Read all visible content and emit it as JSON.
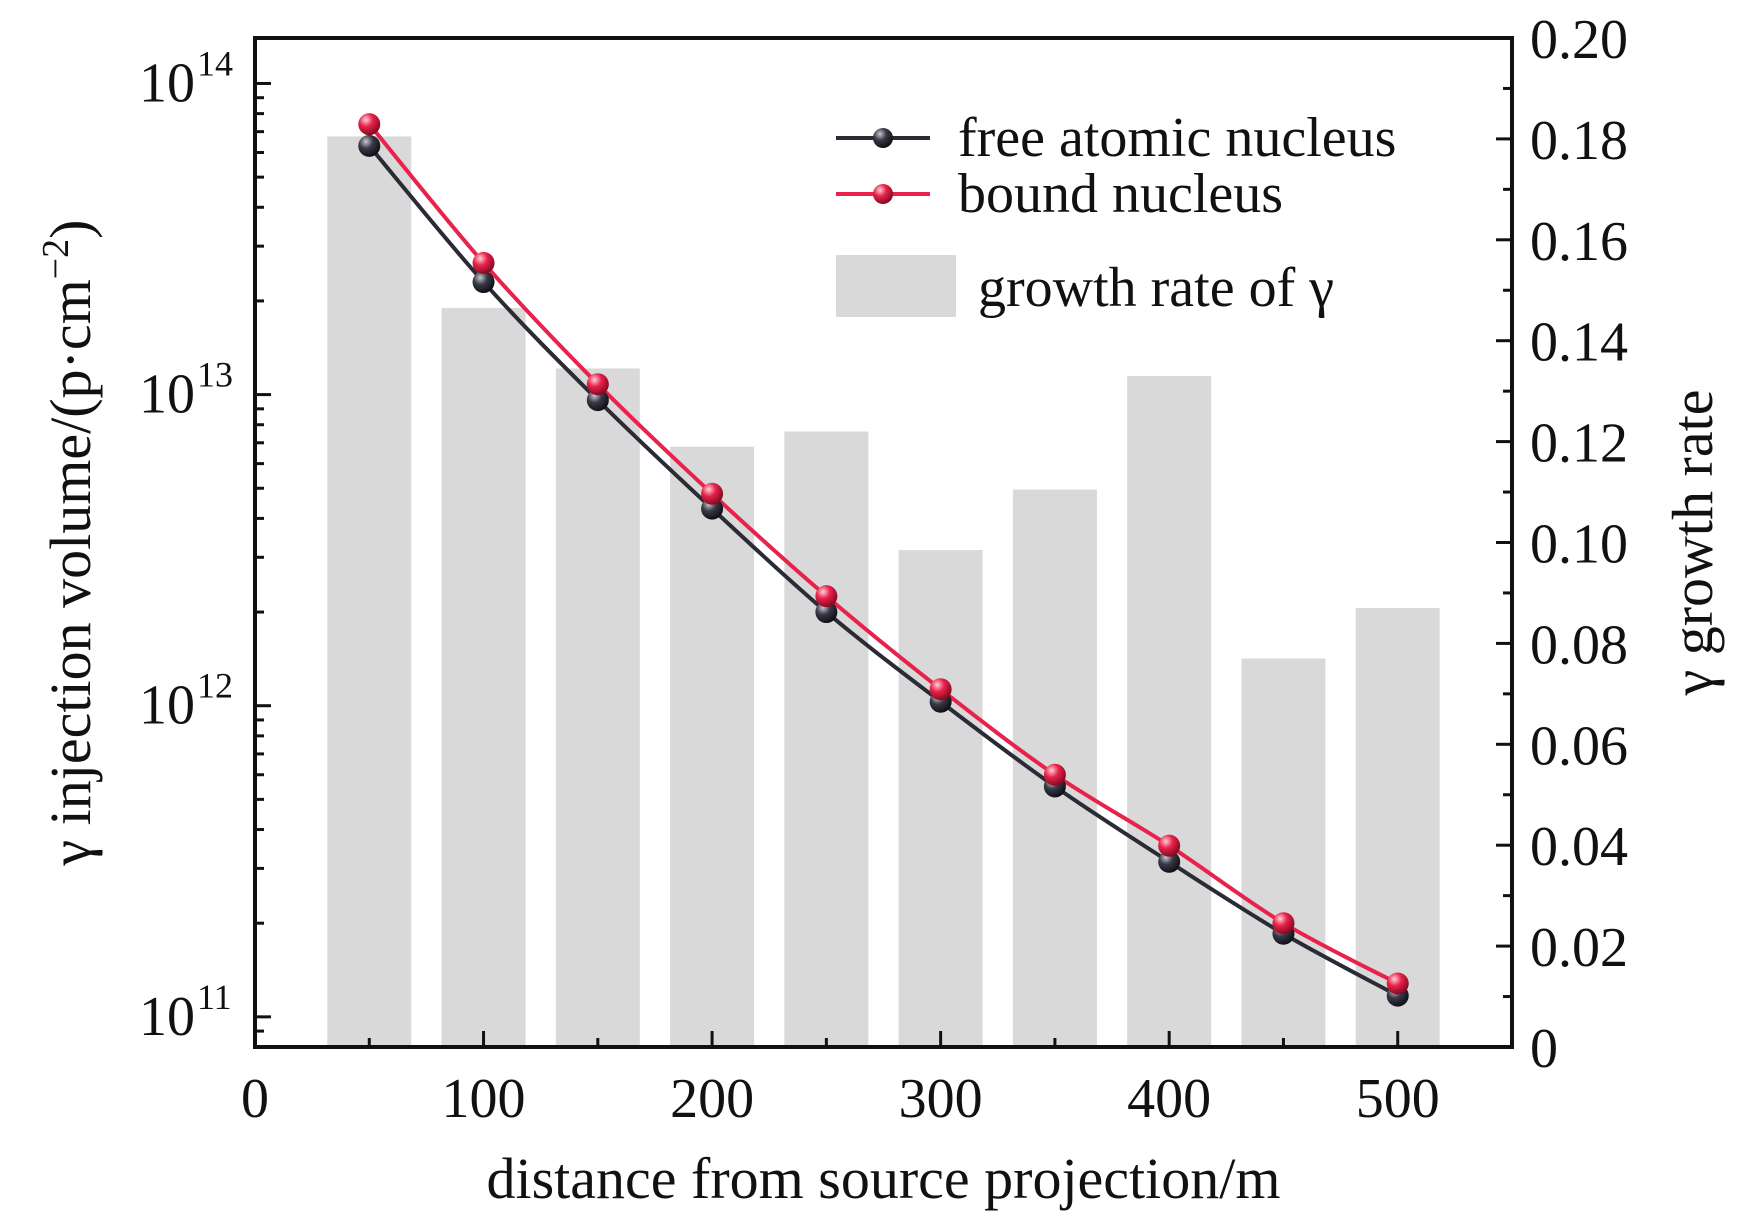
{
  "chart_data": {
    "type": "bar+line",
    "x": [
      50,
      100,
      150,
      200,
      250,
      300,
      350,
      400,
      450,
      500
    ],
    "xlabel": "distance from source projection/m",
    "xlim": [
      0,
      550
    ],
    "xticks": [
      0,
      100,
      200,
      300,
      400,
      500
    ],
    "xtick_labels": [
      "0",
      "100",
      "200",
      "300",
      "400",
      "500"
    ],
    "y_left": {
      "label_prefix": "γ injection volume/(p·cm",
      "label_exp": "−2",
      "label_suffix": ")",
      "scale": "log",
      "ylim": [
        80000000000.0,
        140000000000000.0
      ],
      "ticks": [
        {
          "value": 100000000000.0,
          "base": "10",
          "exp": "11"
        },
        {
          "value": 1000000000000.0,
          "base": "10",
          "exp": "12"
        },
        {
          "value": 10000000000000.0,
          "base": "10",
          "exp": "13"
        },
        {
          "value": 100000000000000.0,
          "base": "10",
          "exp": "14"
        }
      ]
    },
    "y_right": {
      "label": "γ growth rate",
      "scale": "linear",
      "ylim": [
        0,
        0.2
      ],
      "ticks": [
        0,
        0.02,
        0.04,
        0.06,
        0.08,
        0.1,
        0.12,
        0.14,
        0.16,
        0.18,
        0.2
      ],
      "tick_labels": [
        "0",
        "0.02",
        "0.04",
        "0.06",
        "0.08",
        "0.10",
        "0.12",
        "0.14",
        "0.16",
        "0.18",
        "0.20"
      ]
    },
    "series": [
      {
        "name": "free atomic nucleus",
        "type": "line",
        "axis": "left",
        "color": "#2b2b36",
        "values": [
          63000000000000.0,
          23000000000000.0,
          9600000000000.0,
          4300000000000.0,
          2000000000000.0,
          1030000000000.0,
          550000000000.0,
          315000000000.0,
          185000000000.0,
          117000000000.0
        ]
      },
      {
        "name": "bound nucleus",
        "type": "line",
        "axis": "left",
        "color": "#e8224a",
        "values": [
          74000000000000.0,
          26500000000000.0,
          10800000000000.0,
          4800000000000.0,
          2250000000000.0,
          1130000000000.0,
          600000000000.0,
          355000000000.0,
          200000000000.0,
          128000000000.0
        ]
      },
      {
        "name": "growth rate of γ",
        "type": "bar",
        "axis": "right",
        "color": "#d9d9d9",
        "values": [
          0.1805,
          0.1465,
          0.1345,
          0.119,
          0.122,
          0.0985,
          0.1105,
          0.133,
          0.077,
          0.087
        ]
      }
    ],
    "legend": {
      "position": "top-right"
    },
    "grid": false
  }
}
